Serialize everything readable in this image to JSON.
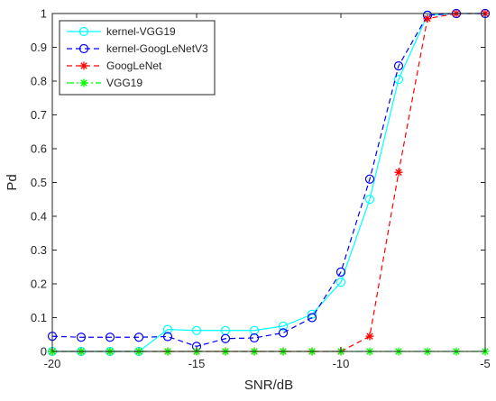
{
  "chart_data": {
    "type": "line",
    "title": "",
    "xlabel": "SNR/dB",
    "ylabel": "Pd",
    "xlim": [
      -20,
      -5
    ],
    "ylim": [
      0,
      1
    ],
    "xticks": [
      -20,
      -15,
      -10,
      -5
    ],
    "xtick_labels": [
      "-20",
      "-15",
      "-10",
      "-5"
    ],
    "yticks": [
      0,
      0.1,
      0.2,
      0.3,
      0.4,
      0.5,
      0.6,
      0.7,
      0.8,
      0.9,
      1
    ],
    "ytick_labels": [
      "0",
      "0.1",
      "0.2",
      "0.3",
      "0.4",
      "0.5",
      "0.6",
      "0.7",
      "0.8",
      "0.9",
      "1"
    ],
    "grid": false,
    "legend_position": "top-left",
    "x": [
      -20,
      -19,
      -18,
      -17,
      -16,
      -15,
      -14,
      -13,
      -12,
      -11,
      -10,
      -9,
      -8,
      -7,
      -6,
      -5
    ],
    "series": [
      {
        "name": "kernel-VGG19",
        "color": "#00ffff",
        "line_style": "solid",
        "marker": "circle",
        "values": [
          0,
          0,
          0,
          0,
          0.065,
          0.062,
          0.062,
          0.062,
          0.075,
          0.11,
          0.205,
          0.45,
          0.805,
          0.995,
          1.0,
          1.0
        ]
      },
      {
        "name": "kernel-GoogLeNetV3",
        "color": "#0000ff",
        "line_style": "dashed",
        "marker": "circle",
        "values": [
          0.045,
          0.042,
          0.042,
          0.042,
          0.044,
          0.015,
          0.038,
          0.04,
          0.055,
          0.1,
          0.235,
          0.51,
          0.845,
          0.995,
          1.0,
          1.0
        ]
      },
      {
        "name": "GoogLeNet",
        "color": "#ff0000",
        "line_style": "dashed",
        "marker": "asterisk",
        "values": [
          0,
          0,
          0,
          0,
          0,
          0,
          0,
          0,
          0,
          0,
          0,
          0.045,
          0.53,
          0.985,
          1.0,
          1.0
        ]
      },
      {
        "name": "VGG19",
        "color": "#00ff00",
        "line_style": "dashdot",
        "marker": "asterisk",
        "values": [
          0,
          0,
          0,
          0,
          0,
          0,
          0,
          0,
          0,
          0,
          0,
          0,
          0,
          0,
          0,
          0
        ]
      }
    ]
  }
}
